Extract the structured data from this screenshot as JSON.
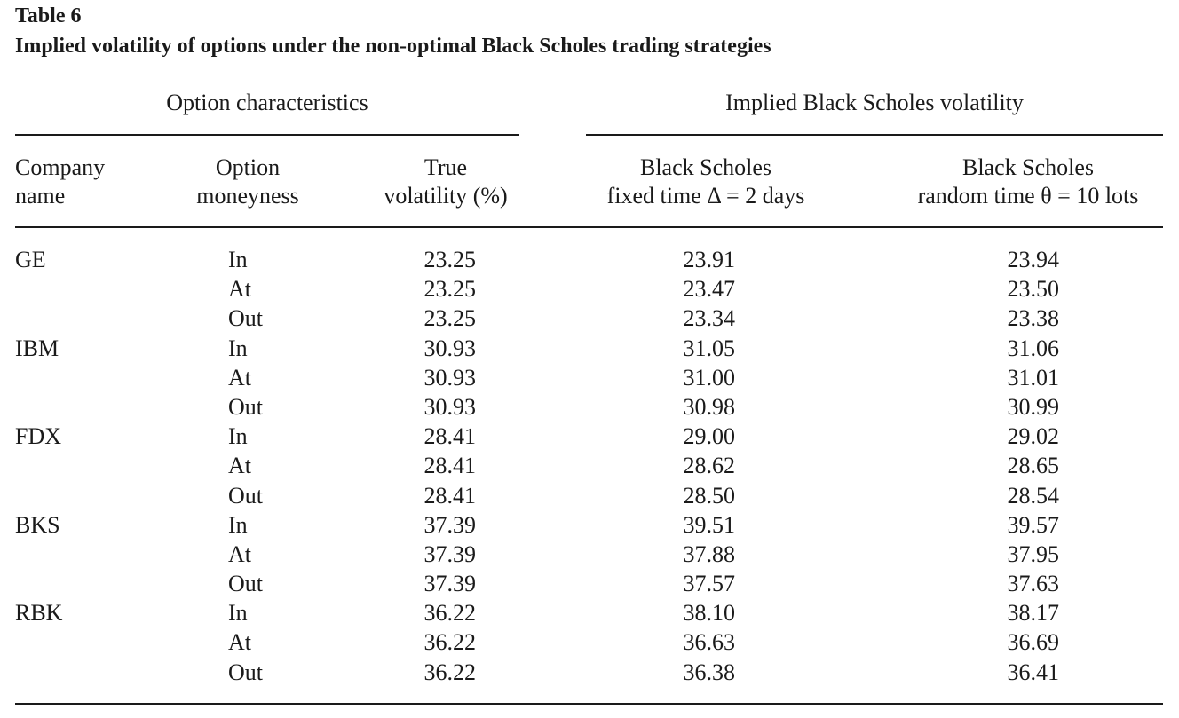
{
  "table": {
    "number": "Table 6",
    "title": "Implied volatility of options under the non-optimal Black Scholes trading strategies",
    "group_headers": {
      "left": "Option characteristics",
      "right": "Implied Black Scholes volatility"
    },
    "columns": {
      "company": [
        "Company",
        "name"
      ],
      "moneyness": [
        "Option",
        "moneyness"
      ],
      "true_vol": [
        "True",
        "volatility (%)"
      ],
      "bs_fixed": [
        "Black Scholes",
        "fixed time Δ = 2 days"
      ],
      "bs_random": [
        "Black Scholes",
        "random time θ = 10 lots"
      ]
    },
    "rows": [
      {
        "company": "GE",
        "moneyness": "In",
        "true_vol": "23.25",
        "bs_fixed": "23.91",
        "bs_random": "23.94"
      },
      {
        "company": "",
        "moneyness": "At",
        "true_vol": "23.25",
        "bs_fixed": "23.47",
        "bs_random": "23.50"
      },
      {
        "company": "",
        "moneyness": "Out",
        "true_vol": "23.25",
        "bs_fixed": "23.34",
        "bs_random": "23.38"
      },
      {
        "company": "IBM",
        "moneyness": "In",
        "true_vol": "30.93",
        "bs_fixed": "31.05",
        "bs_random": "31.06"
      },
      {
        "company": "",
        "moneyness": "At",
        "true_vol": "30.93",
        "bs_fixed": "31.00",
        "bs_random": "31.01"
      },
      {
        "company": "",
        "moneyness": "Out",
        "true_vol": "30.93",
        "bs_fixed": "30.98",
        "bs_random": "30.99"
      },
      {
        "company": "FDX",
        "moneyness": "In",
        "true_vol": "28.41",
        "bs_fixed": "29.00",
        "bs_random": "29.02"
      },
      {
        "company": "",
        "moneyness": "At",
        "true_vol": "28.41",
        "bs_fixed": "28.62",
        "bs_random": "28.65"
      },
      {
        "company": "",
        "moneyness": "Out",
        "true_vol": "28.41",
        "bs_fixed": "28.50",
        "bs_random": "28.54"
      },
      {
        "company": "BKS",
        "moneyness": "In",
        "true_vol": "37.39",
        "bs_fixed": "39.51",
        "bs_random": "39.57"
      },
      {
        "company": "",
        "moneyness": "At",
        "true_vol": "37.39",
        "bs_fixed": "37.88",
        "bs_random": "37.95"
      },
      {
        "company": "",
        "moneyness": "Out",
        "true_vol": "37.39",
        "bs_fixed": "37.57",
        "bs_random": "37.63"
      },
      {
        "company": "RBK",
        "moneyness": "In",
        "true_vol": "36.22",
        "bs_fixed": "38.10",
        "bs_random": "38.17"
      },
      {
        "company": "",
        "moneyness": "At",
        "true_vol": "36.22",
        "bs_fixed": "36.63",
        "bs_random": "36.69"
      },
      {
        "company": "",
        "moneyness": "Out",
        "true_vol": "36.22",
        "bs_fixed": "36.38",
        "bs_random": "36.41"
      }
    ]
  }
}
